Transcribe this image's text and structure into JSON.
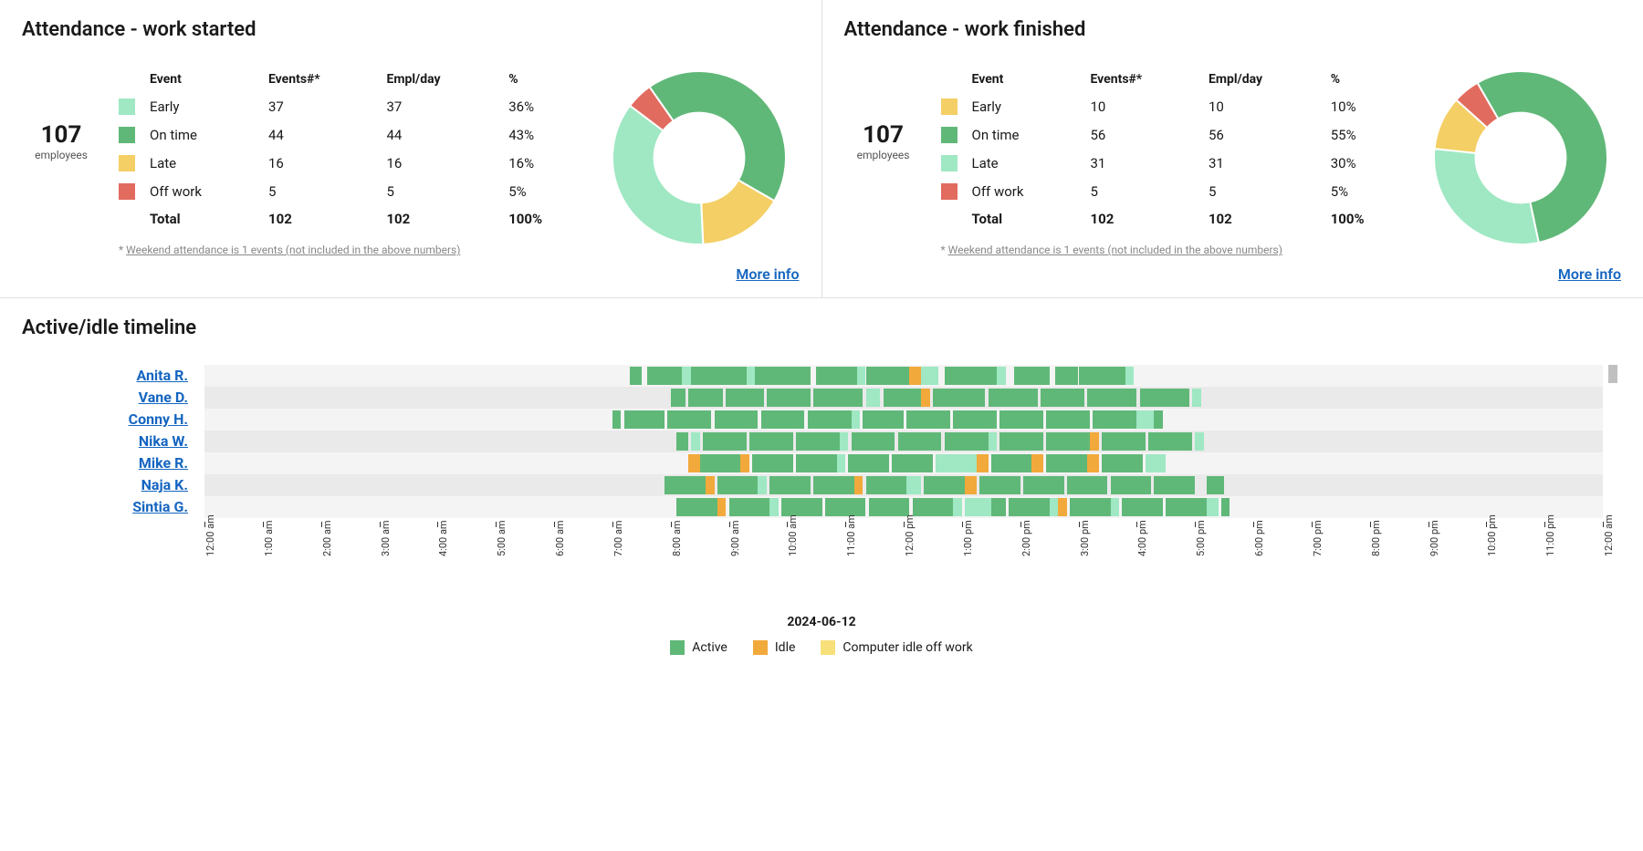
{
  "colors": {
    "early_started": "#9fe8c3",
    "ontime": "#60b878",
    "late_started": "#f4cf65",
    "offwork": "#e26b5f",
    "early_finished": "#f4cf65",
    "late_finished": "#9fe8c3",
    "link": "#1565c0",
    "row_bg_a": "#eaeaea",
    "row_bg_b": "#f4f4f4",
    "active": "#60b878",
    "active_light": "#9fe8c3",
    "idle": "#f2a93b",
    "computer_idle": "#f7e07a"
  },
  "attendance_started": {
    "title": "Attendance - work started",
    "employees_count": "107",
    "employees_label": "employees",
    "columns": [
      "Event",
      "Events#*",
      "Empl/day",
      "%"
    ],
    "rows": [
      {
        "label": "Early",
        "events": "37",
        "empl": "37",
        "pct": "36%",
        "color": "#9fe8c3",
        "value": 36
      },
      {
        "label": "On time",
        "events": "44",
        "empl": "44",
        "pct": "43%",
        "color": "#60b878",
        "value": 43
      },
      {
        "label": "Late",
        "events": "16",
        "empl": "16",
        "pct": "16%",
        "color": "#f4cf65",
        "value": 16
      },
      {
        "label": "Off work",
        "events": "5",
        "empl": "5",
        "pct": "5%",
        "color": "#e26b5f",
        "value": 5
      }
    ],
    "total": {
      "label": "Total",
      "events": "102",
      "empl": "102",
      "pct": "100%"
    },
    "footnote_prefix": "* ",
    "footnote": "Weekend attendance is 1 events (not included in the above numbers)",
    "more_link": "More info",
    "donut": {
      "inner_ratio": 0.52,
      "start_angle": -125
    }
  },
  "attendance_finished": {
    "title": "Attendance - work finished",
    "employees_count": "107",
    "employees_label": "employees",
    "columns": [
      "Event",
      "Events#*",
      "Empl/day",
      "%"
    ],
    "rows": [
      {
        "label": "Early",
        "events": "10",
        "empl": "10",
        "pct": "10%",
        "color": "#f4cf65",
        "value": 10
      },
      {
        "label": "On time",
        "events": "56",
        "empl": "56",
        "pct": "55%",
        "color": "#60b878",
        "value": 55
      },
      {
        "label": "Late",
        "events": "31",
        "empl": "31",
        "pct": "30%",
        "color": "#9fe8c3",
        "value": 30
      },
      {
        "label": "Off work",
        "events": "5",
        "empl": "5",
        "pct": "5%",
        "color": "#e26b5f",
        "value": 5
      }
    ],
    "total": {
      "label": "Total",
      "events": "102",
      "empl": "102",
      "pct": "100%"
    },
    "footnote_prefix": "* ",
    "footnote": "Weekend attendance is 1 events (not included in the above numbers)",
    "more_link": "More info",
    "donut": {
      "inner_ratio": 0.52,
      "start_angle": -120
    }
  },
  "timeline": {
    "title": "Active/idle timeline",
    "date": "2024-06-12",
    "hours": [
      "12:00 am",
      "1:00 am",
      "2:00 am",
      "3:00 am",
      "4:00 am",
      "5:00 am",
      "6:00 am",
      "7:00 am",
      "8:00 am",
      "9:00 am",
      "10:00 am",
      "11:00 am",
      "12:00 pm",
      "1:00 pm",
      "2:00 pm",
      "3:00 pm",
      "4:00 pm",
      "5:00 pm",
      "6:00 pm",
      "7:00 pm",
      "8:00 pm",
      "9:00 pm",
      "10:00 pm",
      "11:00 pm",
      "12:00 am"
    ],
    "legend": [
      {
        "label": "Active",
        "color": "#60b878"
      },
      {
        "label": "Idle",
        "color": "#f2a93b"
      },
      {
        "label": "Computer idle off work",
        "color": "#f7e07a"
      }
    ],
    "employees": [
      {
        "name": "Anita R.",
        "segments": [
          {
            "s": 7.3,
            "e": 7.5,
            "c": "#60b878"
          },
          {
            "s": 7.6,
            "e": 8.2,
            "c": "#60b878"
          },
          {
            "s": 8.2,
            "e": 8.35,
            "c": "#9fe8c3"
          },
          {
            "s": 8.35,
            "e": 9.3,
            "c": "#60b878"
          },
          {
            "s": 9.3,
            "e": 9.45,
            "c": "#9fe8c3"
          },
          {
            "s": 9.45,
            "e": 10.4,
            "c": "#60b878"
          },
          {
            "s": 10.5,
            "e": 11.2,
            "c": "#60b878"
          },
          {
            "s": 11.2,
            "e": 11.35,
            "c": "#9fe8c3"
          },
          {
            "s": 11.35,
            "e": 12.1,
            "c": "#60b878"
          },
          {
            "s": 12.1,
            "e": 12.3,
            "c": "#f2a93b"
          },
          {
            "s": 12.3,
            "e": 12.6,
            "c": "#9fe8c3"
          },
          {
            "s": 12.7,
            "e": 13.6,
            "c": "#60b878"
          },
          {
            "s": 13.6,
            "e": 13.75,
            "c": "#9fe8c3"
          },
          {
            "s": 13.9,
            "e": 14.5,
            "c": "#60b878"
          },
          {
            "s": 14.6,
            "e": 15.0,
            "c": "#60b878"
          },
          {
            "s": 15.0,
            "e": 15.8,
            "c": "#60b878"
          },
          {
            "s": 15.8,
            "e": 15.95,
            "c": "#9fe8c3"
          }
        ]
      },
      {
        "name": "Vane D.",
        "segments": [
          {
            "s": 8.0,
            "e": 8.25,
            "c": "#60b878"
          },
          {
            "s": 8.3,
            "e": 8.9,
            "c": "#60b878"
          },
          {
            "s": 8.95,
            "e": 9.6,
            "c": "#60b878"
          },
          {
            "s": 9.65,
            "e": 10.4,
            "c": "#60b878"
          },
          {
            "s": 10.45,
            "e": 11.3,
            "c": "#60b878"
          },
          {
            "s": 11.35,
            "e": 11.6,
            "c": "#9fe8c3"
          },
          {
            "s": 11.65,
            "e": 12.3,
            "c": "#60b878"
          },
          {
            "s": 12.3,
            "e": 12.45,
            "c": "#f2a93b"
          },
          {
            "s": 12.5,
            "e": 13.4,
            "c": "#60b878"
          },
          {
            "s": 13.45,
            "e": 14.3,
            "c": "#60b878"
          },
          {
            "s": 14.35,
            "e": 15.1,
            "c": "#60b878"
          },
          {
            "s": 15.15,
            "e": 16.0,
            "c": "#60b878"
          },
          {
            "s": 16.05,
            "e": 16.9,
            "c": "#60b878"
          },
          {
            "s": 16.95,
            "e": 17.1,
            "c": "#9fe8c3"
          }
        ]
      },
      {
        "name": "Conny H.",
        "segments": [
          {
            "s": 7.0,
            "e": 7.15,
            "c": "#60b878"
          },
          {
            "s": 7.2,
            "e": 7.9,
            "c": "#60b878"
          },
          {
            "s": 7.95,
            "e": 8.7,
            "c": "#60b878"
          },
          {
            "s": 8.75,
            "e": 9.5,
            "c": "#60b878"
          },
          {
            "s": 9.55,
            "e": 10.3,
            "c": "#60b878"
          },
          {
            "s": 10.35,
            "e": 11.1,
            "c": "#60b878"
          },
          {
            "s": 11.1,
            "e": 11.25,
            "c": "#9fe8c3"
          },
          {
            "s": 11.3,
            "e": 12.0,
            "c": "#60b878"
          },
          {
            "s": 12.05,
            "e": 12.8,
            "c": "#60b878"
          },
          {
            "s": 12.85,
            "e": 13.6,
            "c": "#60b878"
          },
          {
            "s": 13.65,
            "e": 14.4,
            "c": "#60b878"
          },
          {
            "s": 14.45,
            "e": 15.2,
            "c": "#60b878"
          },
          {
            "s": 15.25,
            "e": 16.0,
            "c": "#60b878"
          },
          {
            "s": 16.0,
            "e": 16.3,
            "c": "#9fe8c3"
          },
          {
            "s": 16.3,
            "e": 16.45,
            "c": "#60b878"
          }
        ]
      },
      {
        "name": "Nika W.",
        "segments": [
          {
            "s": 8.1,
            "e": 8.3,
            "c": "#60b878"
          },
          {
            "s": 8.35,
            "e": 8.5,
            "c": "#9fe8c3"
          },
          {
            "s": 8.55,
            "e": 9.3,
            "c": "#60b878"
          },
          {
            "s": 9.35,
            "e": 10.1,
            "c": "#60b878"
          },
          {
            "s": 10.15,
            "e": 10.9,
            "c": "#60b878"
          },
          {
            "s": 10.9,
            "e": 11.05,
            "c": "#9fe8c3"
          },
          {
            "s": 11.1,
            "e": 11.85,
            "c": "#60b878"
          },
          {
            "s": 11.9,
            "e": 12.65,
            "c": "#60b878"
          },
          {
            "s": 12.7,
            "e": 13.45,
            "c": "#60b878"
          },
          {
            "s": 13.45,
            "e": 13.6,
            "c": "#9fe8c3"
          },
          {
            "s": 13.65,
            "e": 14.4,
            "c": "#60b878"
          },
          {
            "s": 14.45,
            "e": 15.2,
            "c": "#60b878"
          },
          {
            "s": 15.2,
            "e": 15.35,
            "c": "#f2a93b"
          },
          {
            "s": 15.4,
            "e": 16.15,
            "c": "#60b878"
          },
          {
            "s": 16.2,
            "e": 16.95,
            "c": "#60b878"
          },
          {
            "s": 17.0,
            "e": 17.15,
            "c": "#9fe8c3"
          }
        ]
      },
      {
        "name": "Mike R.",
        "segments": [
          {
            "s": 8.3,
            "e": 8.5,
            "c": "#f2a93b"
          },
          {
            "s": 8.5,
            "e": 9.2,
            "c": "#60b878"
          },
          {
            "s": 9.2,
            "e": 9.35,
            "c": "#f2a93b"
          },
          {
            "s": 9.4,
            "e": 10.1,
            "c": "#60b878"
          },
          {
            "s": 10.15,
            "e": 10.85,
            "c": "#60b878"
          },
          {
            "s": 10.85,
            "e": 11.0,
            "c": "#9fe8c3"
          },
          {
            "s": 11.05,
            "e": 11.75,
            "c": "#60b878"
          },
          {
            "s": 11.8,
            "e": 12.5,
            "c": "#60b878"
          },
          {
            "s": 12.55,
            "e": 13.25,
            "c": "#9fe8c3"
          },
          {
            "s": 13.25,
            "e": 13.45,
            "c": "#f2a93b"
          },
          {
            "s": 13.5,
            "e": 14.2,
            "c": "#60b878"
          },
          {
            "s": 14.2,
            "e": 14.4,
            "c": "#f2a93b"
          },
          {
            "s": 14.45,
            "e": 15.15,
            "c": "#60b878"
          },
          {
            "s": 15.15,
            "e": 15.35,
            "c": "#f2a93b"
          },
          {
            "s": 15.4,
            "e": 16.1,
            "c": "#60b878"
          },
          {
            "s": 16.15,
            "e": 16.5,
            "c": "#9fe8c3"
          }
        ]
      },
      {
        "name": "Naja K.",
        "segments": [
          {
            "s": 7.9,
            "e": 8.6,
            "c": "#60b878"
          },
          {
            "s": 8.6,
            "e": 8.75,
            "c": "#f2a93b"
          },
          {
            "s": 8.8,
            "e": 9.5,
            "c": "#60b878"
          },
          {
            "s": 9.5,
            "e": 9.65,
            "c": "#9fe8c3"
          },
          {
            "s": 9.7,
            "e": 10.4,
            "c": "#60b878"
          },
          {
            "s": 10.45,
            "e": 11.15,
            "c": "#60b878"
          },
          {
            "s": 11.15,
            "e": 11.3,
            "c": "#f2a93b"
          },
          {
            "s": 11.35,
            "e": 12.05,
            "c": "#60b878"
          },
          {
            "s": 12.05,
            "e": 12.3,
            "c": "#9fe8c3"
          },
          {
            "s": 12.35,
            "e": 13.05,
            "c": "#60b878"
          },
          {
            "s": 13.05,
            "e": 13.25,
            "c": "#f2a93b"
          },
          {
            "s": 13.3,
            "e": 14.0,
            "c": "#60b878"
          },
          {
            "s": 14.05,
            "e": 14.75,
            "c": "#60b878"
          },
          {
            "s": 14.8,
            "e": 15.5,
            "c": "#60b878"
          },
          {
            "s": 15.55,
            "e": 16.25,
            "c": "#60b878"
          },
          {
            "s": 16.3,
            "e": 17.0,
            "c": "#60b878"
          },
          {
            "s": 17.2,
            "e": 17.5,
            "c": "#60b878"
          }
        ]
      },
      {
        "name": "Sintia G.",
        "segments": [
          {
            "s": 8.1,
            "e": 8.8,
            "c": "#60b878"
          },
          {
            "s": 8.8,
            "e": 8.95,
            "c": "#f2a93b"
          },
          {
            "s": 9.0,
            "e": 9.7,
            "c": "#60b878"
          },
          {
            "s": 9.7,
            "e": 9.85,
            "c": "#9fe8c3"
          },
          {
            "s": 9.9,
            "e": 10.6,
            "c": "#60b878"
          },
          {
            "s": 10.65,
            "e": 11.35,
            "c": "#60b878"
          },
          {
            "s": 11.4,
            "e": 12.1,
            "c": "#60b878"
          },
          {
            "s": 12.15,
            "e": 12.85,
            "c": "#60b878"
          },
          {
            "s": 12.85,
            "e": 13.0,
            "c": "#9fe8c3"
          },
          {
            "s": 13.05,
            "e": 13.5,
            "c": "#9fe8c3"
          },
          {
            "s": 13.5,
            "e": 13.75,
            "c": "#60b878"
          },
          {
            "s": 13.8,
            "e": 14.5,
            "c": "#60b878"
          },
          {
            "s": 14.5,
            "e": 14.65,
            "c": "#9fe8c3"
          },
          {
            "s": 14.65,
            "e": 14.8,
            "c": "#f2a93b"
          },
          {
            "s": 14.85,
            "e": 15.55,
            "c": "#60b878"
          },
          {
            "s": 15.55,
            "e": 15.7,
            "c": "#9fe8c3"
          },
          {
            "s": 15.75,
            "e": 16.45,
            "c": "#60b878"
          },
          {
            "s": 16.5,
            "e": 17.2,
            "c": "#60b878"
          },
          {
            "s": 17.2,
            "e": 17.4,
            "c": "#9fe8c3"
          },
          {
            "s": 17.45,
            "e": 17.6,
            "c": "#60b878"
          }
        ]
      }
    ]
  }
}
